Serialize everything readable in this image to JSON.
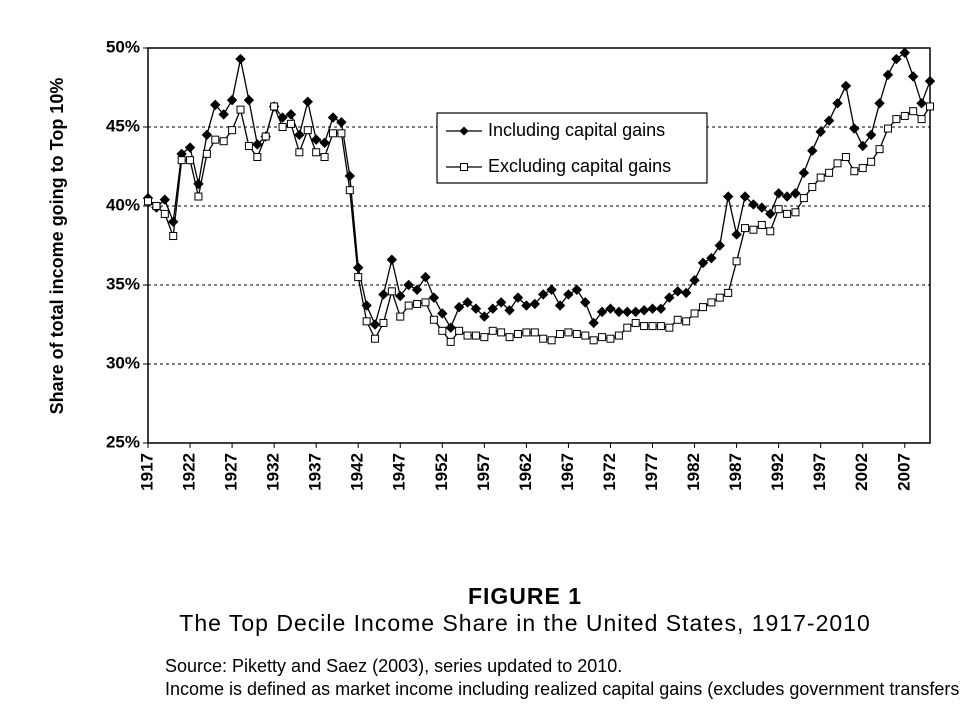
{
  "chart_data": {
    "type": "line",
    "title": "FIGURE 1",
    "subtitle": "The Top Decile Income Share in the United States, 1917-2010",
    "notes": [
      "Source: Piketty and Saez (2003), series updated to 2010.",
      "Income is defined as market income including realized capital gains (excludes government transfers)."
    ],
    "ylabel": "Share of total income going to Top 10%",
    "x": [
      1917,
      1918,
      1919,
      1920,
      1921,
      1922,
      1923,
      1924,
      1925,
      1926,
      1927,
      1928,
      1929,
      1930,
      1931,
      1932,
      1933,
      1934,
      1935,
      1936,
      1937,
      1938,
      1939,
      1940,
      1941,
      1942,
      1943,
      1944,
      1945,
      1946,
      1947,
      1948,
      1949,
      1950,
      1951,
      1952,
      1953,
      1954,
      1955,
      1956,
      1957,
      1958,
      1959,
      1960,
      1961,
      1962,
      1963,
      1964,
      1965,
      1966,
      1967,
      1968,
      1969,
      1970,
      1971,
      1972,
      1973,
      1974,
      1975,
      1976,
      1977,
      1978,
      1979,
      1980,
      1981,
      1982,
      1983,
      1984,
      1985,
      1986,
      1987,
      1988,
      1989,
      1990,
      1991,
      1992,
      1993,
      1994,
      1995,
      1996,
      1997,
      1998,
      1999,
      2000,
      2001,
      2002,
      2003,
      2004,
      2005,
      2006,
      2007,
      2008,
      2009,
      2010
    ],
    "series": [
      {
        "name": "Including capital gains",
        "color": "#000000",
        "marker": "diamond",
        "values": [
          40.5,
          39.9,
          40.4,
          39.0,
          43.3,
          43.7,
          41.4,
          44.5,
          46.4,
          45.8,
          46.7,
          49.3,
          46.7,
          43.9,
          44.4,
          46.3,
          45.6,
          45.8,
          44.5,
          46.6,
          44.2,
          44.0,
          45.6,
          45.3,
          41.9,
          36.1,
          33.7,
          32.5,
          34.4,
          36.6,
          34.3,
          35.0,
          34.7,
          35.5,
          34.2,
          33.2,
          32.3,
          33.6,
          33.9,
          33.5,
          33.0,
          33.5,
          33.9,
          33.4,
          34.2,
          33.7,
          33.8,
          34.4,
          34.7,
          33.7,
          34.4,
          34.7,
          33.9,
          32.6,
          33.3,
          33.5,
          33.3,
          33.3,
          33.3,
          33.4,
          33.5,
          33.5,
          34.2,
          34.6,
          34.5,
          35.3,
          36.4,
          36.7,
          37.5,
          40.6,
          38.2,
          40.6,
          40.1,
          39.9,
          39.5,
          40.8,
          40.6,
          40.8,
          42.1,
          43.5,
          44.7,
          45.4,
          46.5,
          47.6,
          44.9,
          43.8,
          44.5,
          46.5,
          48.3,
          49.3,
          49.7,
          48.2,
          46.5,
          47.9
        ]
      },
      {
        "name": "Excluding capital gains",
        "color": "#000000",
        "marker": "square",
        "values": [
          40.3,
          40.0,
          39.5,
          38.1,
          42.9,
          42.9,
          40.6,
          43.3,
          44.2,
          44.1,
          44.8,
          46.1,
          43.8,
          43.1,
          44.4,
          46.3,
          45.0,
          45.2,
          43.4,
          44.8,
          43.4,
          43.1,
          44.6,
          44.6,
          41.0,
          35.5,
          32.7,
          31.6,
          32.6,
          34.6,
          33.0,
          33.7,
          33.8,
          33.9,
          32.8,
          32.1,
          31.4,
          32.1,
          31.8,
          31.8,
          31.7,
          32.1,
          32.0,
          31.7,
          31.9,
          32.0,
          32.0,
          31.6,
          31.5,
          31.9,
          32.0,
          31.9,
          31.8,
          31.5,
          31.7,
          31.6,
          31.8,
          32.3,
          32.6,
          32.4,
          32.4,
          32.4,
          32.3,
          32.8,
          32.7,
          33.2,
          33.6,
          33.9,
          34.2,
          34.5,
          36.5,
          38.6,
          38.5,
          38.8,
          38.4,
          39.8,
          39.5,
          39.6,
          40.5,
          41.2,
          41.8,
          42.1,
          42.7,
          43.1,
          42.2,
          42.4,
          42.8,
          43.6,
          44.9,
          45.5,
          45.7,
          46.0,
          45.5,
          46.3
        ]
      }
    ],
    "xlim": [
      1917,
      2010
    ],
    "xticks": [
      1917,
      1922,
      1927,
      1932,
      1937,
      1942,
      1947,
      1952,
      1957,
      1962,
      1967,
      1972,
      1977,
      1982,
      1987,
      1992,
      1997,
      2002,
      2007
    ],
    "ylim": [
      25,
      50
    ],
    "yticks": [
      {
        "value": 25,
        "label": "25%"
      },
      {
        "value": 30,
        "label": "30%"
      },
      {
        "value": 35,
        "label": "35%"
      },
      {
        "value": 40,
        "label": "40%"
      },
      {
        "value": 45,
        "label": "45%"
      },
      {
        "value": 50,
        "label": "50%"
      }
    ],
    "grid": true
  }
}
